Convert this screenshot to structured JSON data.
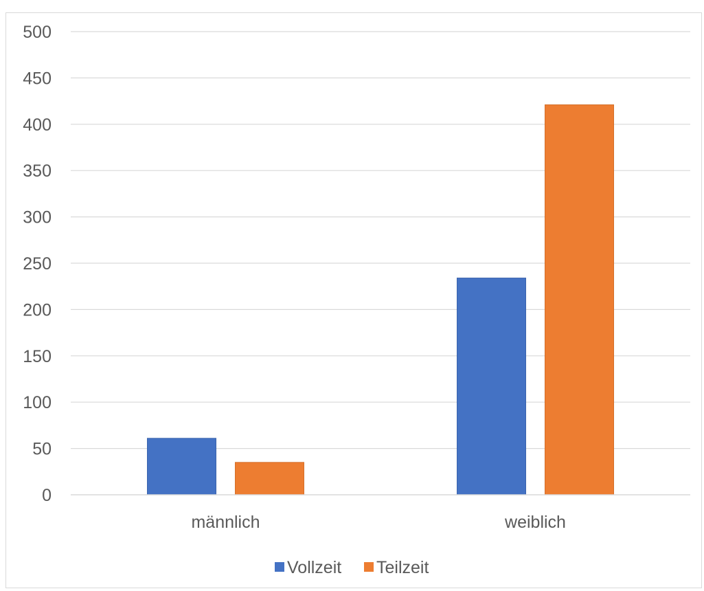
{
  "chart_data": {
    "type": "bar",
    "title": "",
    "xlabel": "",
    "ylabel": "",
    "categories": [
      "männlich",
      "weiblich"
    ],
    "series": [
      {
        "name": "Vollzeit",
        "color": "#4472c4",
        "values": [
          61,
          234
        ]
      },
      {
        "name": "Teilzeit",
        "color": "#ed7d31",
        "values": [
          35,
          421
        ]
      }
    ],
    "ylim": [
      0,
      500
    ],
    "yticks": [
      0,
      50,
      100,
      150,
      200,
      250,
      300,
      350,
      400,
      450,
      500
    ],
    "grid": true,
    "legend": "bottom"
  }
}
